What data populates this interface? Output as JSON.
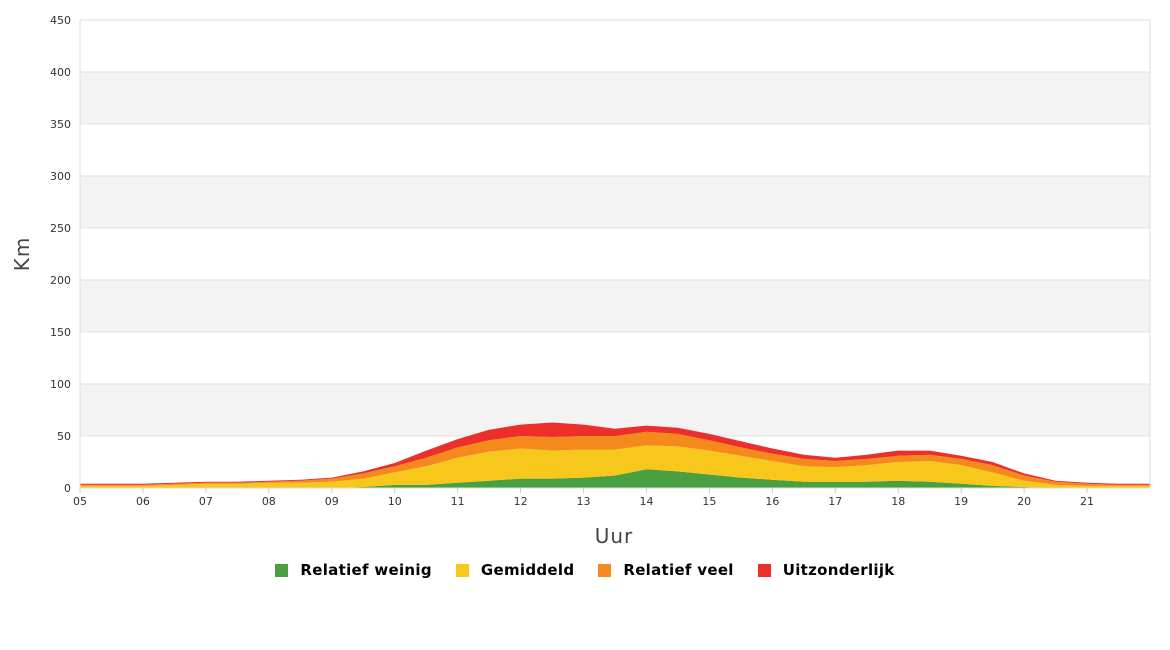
{
  "chart_data": {
    "type": "area",
    "stacked": true,
    "xlabel": "Uur",
    "ylabel": "Km",
    "ylim": [
      0,
      450
    ],
    "yticks": [
      0,
      50,
      100,
      150,
      200,
      250,
      300,
      350,
      400,
      450
    ],
    "xlim": [
      5,
      22
    ],
    "xticks": [
      {
        "value": 5,
        "label": "05"
      },
      {
        "value": 6,
        "label": "06"
      },
      {
        "value": 7,
        "label": "07"
      },
      {
        "value": 8,
        "label": "08"
      },
      {
        "value": 9,
        "label": "09"
      },
      {
        "value": 10,
        "label": "10"
      },
      {
        "value": 11,
        "label": "11"
      },
      {
        "value": 12,
        "label": "12"
      },
      {
        "value": 13,
        "label": "13"
      },
      {
        "value": 14,
        "label": "14"
      },
      {
        "value": 15,
        "label": "15"
      },
      {
        "value": 16,
        "label": "16"
      },
      {
        "value": 17,
        "label": "17"
      },
      {
        "value": 18,
        "label": "18"
      },
      {
        "value": 19,
        "label": "19"
      },
      {
        "value": 20,
        "label": "20"
      },
      {
        "value": 21,
        "label": "21"
      }
    ],
    "grid": "alternating horizontal bands",
    "legend_position": "bottom-center",
    "x": [
      5,
      5.5,
      6,
      6.5,
      7,
      7.5,
      8,
      8.5,
      9,
      9.5,
      10,
      10.5,
      11,
      11.5,
      12,
      12.5,
      13,
      13.5,
      14,
      14.5,
      15,
      15.5,
      16,
      16.5,
      17,
      17.5,
      18,
      18.5,
      19,
      19.5,
      20,
      20.5,
      21,
      21.5,
      22
    ],
    "series": [
      {
        "name": "Relatief weinig",
        "color": "#4aa040",
        "values": [
          0,
          0,
          0,
          0,
          0,
          0,
          0,
          0,
          0,
          1,
          3,
          3,
          5,
          7,
          9,
          9,
          10,
          12,
          18,
          16,
          13,
          10,
          8,
          6,
          6,
          6,
          7,
          6,
          4,
          2,
          1,
          0,
          0,
          0,
          0
        ]
      },
      {
        "name": "Gemiddeld",
        "color": "#f7c71b",
        "values": [
          2,
          2,
          2,
          3,
          4,
          4,
          5,
          5,
          6,
          8,
          12,
          18,
          24,
          28,
          29,
          27,
          27,
          25,
          23,
          24,
          23,
          21,
          18,
          15,
          14,
          16,
          18,
          20,
          18,
          13,
          6,
          3,
          2,
          2,
          2
        ]
      },
      {
        "name": "Relatief veel",
        "color": "#f58a1c",
        "values": [
          1,
          1,
          1,
          1,
          1,
          1,
          1,
          2,
          3,
          5,
          6,
          8,
          10,
          11,
          12,
          13,
          13,
          13,
          13,
          12,
          10,
          8,
          7,
          7,
          6,
          6,
          6,
          6,
          6,
          7,
          5,
          3,
          2,
          1,
          1
        ]
      },
      {
        "name": "Uitzonderlijk",
        "color": "#ec2f2a",
        "values": [
          1,
          1,
          1,
          1,
          1,
          1,
          1,
          1,
          1,
          2,
          3,
          7,
          8,
          10,
          11,
          14,
          11,
          7,
          6,
          6,
          6,
          6,
          5,
          4,
          3,
          4,
          5,
          4,
          3,
          3,
          2,
          1,
          1,
          1,
          1
        ]
      }
    ]
  }
}
